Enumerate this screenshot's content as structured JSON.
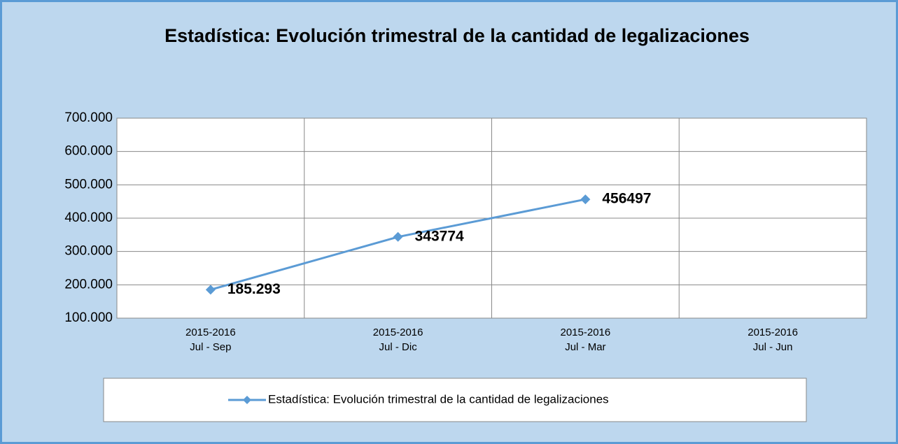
{
  "chart_data": {
    "type": "line",
    "title": "Estadística: Evolución trimestral de la cantidad de legalizaciones",
    "categories": [
      "2015-2016\nJul - Sep",
      "2015-2016\nJul - Dic",
      "2015-2016\nJul - Mar",
      "2015-2016\nJul - Jun"
    ],
    "series": [
      {
        "name": "Estadística: Evolución trimestral de la cantidad de legalizaciones",
        "color": "#5b9bd5",
        "values": [
          185293,
          343774,
          456497,
          null
        ],
        "value_labels": [
          "185.293",
          "343774",
          "456497",
          null
        ]
      }
    ],
    "ylim": [
      100000,
      700000
    ],
    "yticks": [
      {
        "value": 100000,
        "label": "100.000"
      },
      {
        "value": 200000,
        "label": "200.000"
      },
      {
        "value": 300000,
        "label": "300.000"
      },
      {
        "value": 400000,
        "label": "400.000"
      },
      {
        "value": 500000,
        "label": "500.000"
      },
      {
        "value": 600000,
        "label": "600.000"
      },
      {
        "value": 700000,
        "label": "700.000"
      }
    ],
    "grid": true,
    "legend": "bottom"
  }
}
